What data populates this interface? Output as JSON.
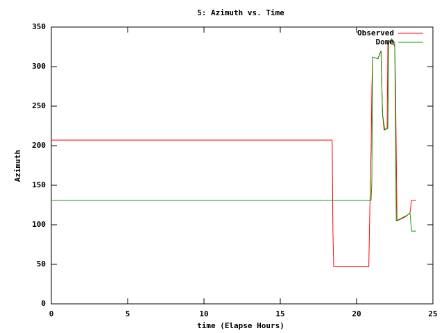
{
  "chart_data": {
    "type": "line",
    "title": "5: Azimuth vs. Time",
    "xlabel": "time (Elapse Hours)",
    "ylabel": "Azimuth",
    "xlim": [
      0,
      25
    ],
    "xticks": [
      0,
      5,
      10,
      15,
      20,
      25
    ],
    "ylim": [
      0,
      350
    ],
    "yticks": [
      0,
      50,
      100,
      150,
      200,
      250,
      300,
      350
    ],
    "grid": false,
    "legend": "top-right",
    "series": [
      {
        "name": "Observed",
        "color": "#ff0000",
        "x": [
          0,
          18.4,
          18.45,
          18.5,
          20.8,
          20.85,
          20.9,
          20.95,
          21.0,
          21.05,
          21.4,
          21.55,
          21.6,
          21.7,
          21.8,
          22.0,
          22.05,
          22.3,
          22.5,
          22.55,
          22.65,
          23.2,
          23.5,
          23.6,
          23.9
        ],
        "values": [
          207,
          207,
          90,
          47,
          47,
          100,
          150,
          195,
          270,
          312,
          310,
          318,
          320,
          240,
          220,
          222,
          330,
          335,
          325,
          275,
          105,
          110,
          115,
          131,
          131
        ]
      },
      {
        "name": "Dome",
        "color": "#00a000",
        "x": [
          0,
          20.9,
          20.95,
          21.0,
          21.05,
          21.4,
          21.55,
          21.6,
          21.7,
          21.85,
          22.05,
          22.1,
          22.3,
          22.5,
          22.6,
          23.3,
          23.5,
          23.6,
          23.9
        ],
        "values": [
          131,
          131,
          131,
          155,
          312,
          310,
          318,
          320,
          240,
          220,
          222,
          330,
          335,
          330,
          105,
          112,
          115,
          92,
          92
        ]
      }
    ]
  }
}
